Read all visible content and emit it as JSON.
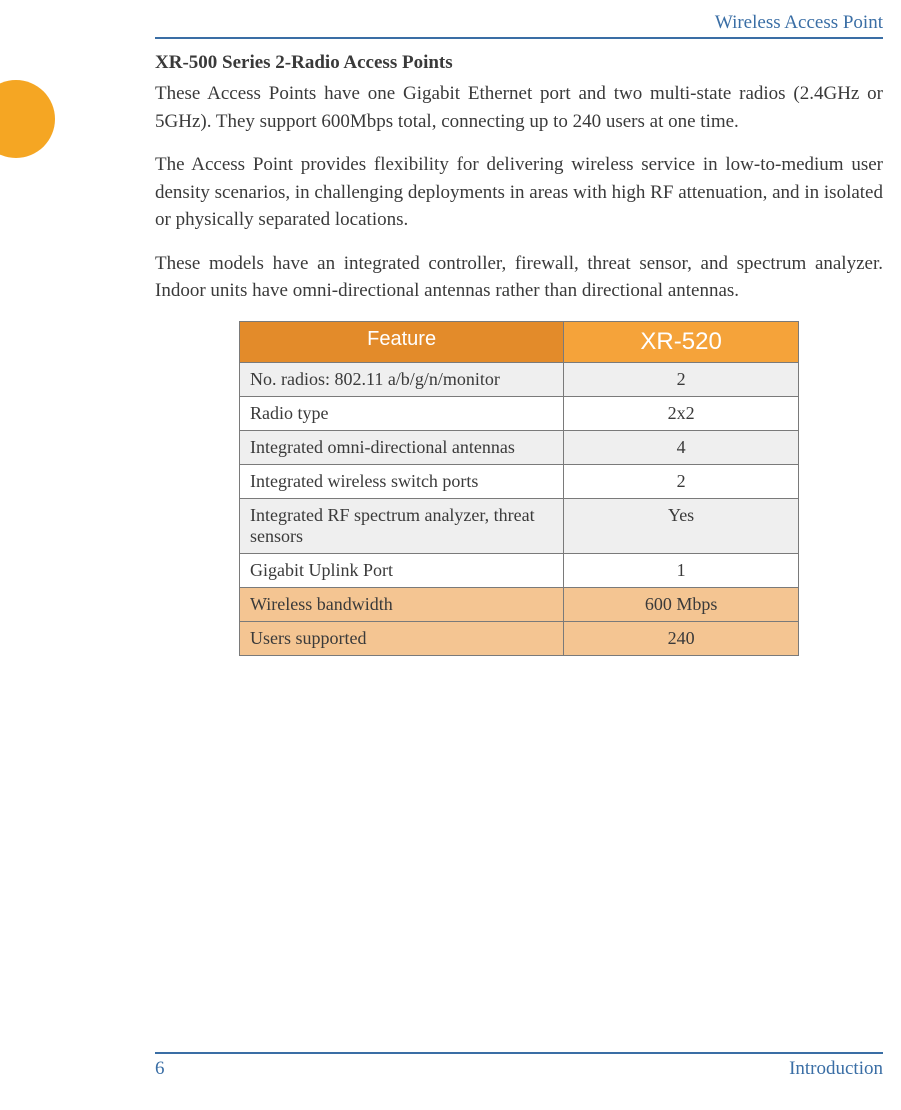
{
  "header": {
    "title": "Wireless Access Point",
    "rule_color": "#3a6ea5",
    "title_color": "#3a6ea5"
  },
  "side_tab": {
    "color": "#f5a623"
  },
  "section": {
    "title": "XR-500 Series 2-Radio Access Points",
    "paragraphs": [
      "These Access Points have one Gigabit Ethernet port and two multi-state radios (2.4GHz or 5GHz). They support 600Mbps total, connecting up to 240 users at one time.",
      "The Access Point provides flexibility for delivering wireless service in low-to-medium user density scenarios, in challenging deployments in areas with high RF attenuation, and in isolated or physically separated locations.",
      "These models have an integrated controller, firewall, threat sensor, and spectrum analyzer. Indoor units have omni-directional antennas rather than directional antennas."
    ]
  },
  "table": {
    "type": "table",
    "header_feature": "Feature",
    "header_model": "XR-520",
    "header_feature_bg": "#e38b2a",
    "header_model_bg": "#f5a33a",
    "header_text_color": "#ffffff",
    "border_color": "#7a7a7a",
    "alt_row_bg": "#efefef",
    "highlight_row_bg": "#f4c592",
    "title_fontsize_feature": 20,
    "title_fontsize_model": 24,
    "cell_fontsize": 18,
    "rows": [
      {
        "feature": "No. radios: 802.11 a/b/g/n/monitor",
        "value": "2",
        "style": "alt"
      },
      {
        "feature": "Radio type",
        "value": "2x2",
        "style": "plain"
      },
      {
        "feature": "Integrated omni-directional antennas",
        "value": "4",
        "style": "alt"
      },
      {
        "feature": "Integrated wireless switch ports",
        "value": "2",
        "style": "plain"
      },
      {
        "feature": "Integrated RF spectrum analyzer, threat sensors",
        "value": "Yes",
        "style": "alt"
      },
      {
        "feature": "Gigabit Uplink Port",
        "value": "1",
        "style": "plain"
      },
      {
        "feature": "Wireless bandwidth",
        "value": "600 Mbps",
        "style": "highlight"
      },
      {
        "feature": "Users supported",
        "value": "240",
        "style": "highlight"
      }
    ]
  },
  "footer": {
    "page_number": "6",
    "section_label": "Introduction",
    "rule_color": "#3a6ea5",
    "text_color": "#3a6ea5"
  }
}
